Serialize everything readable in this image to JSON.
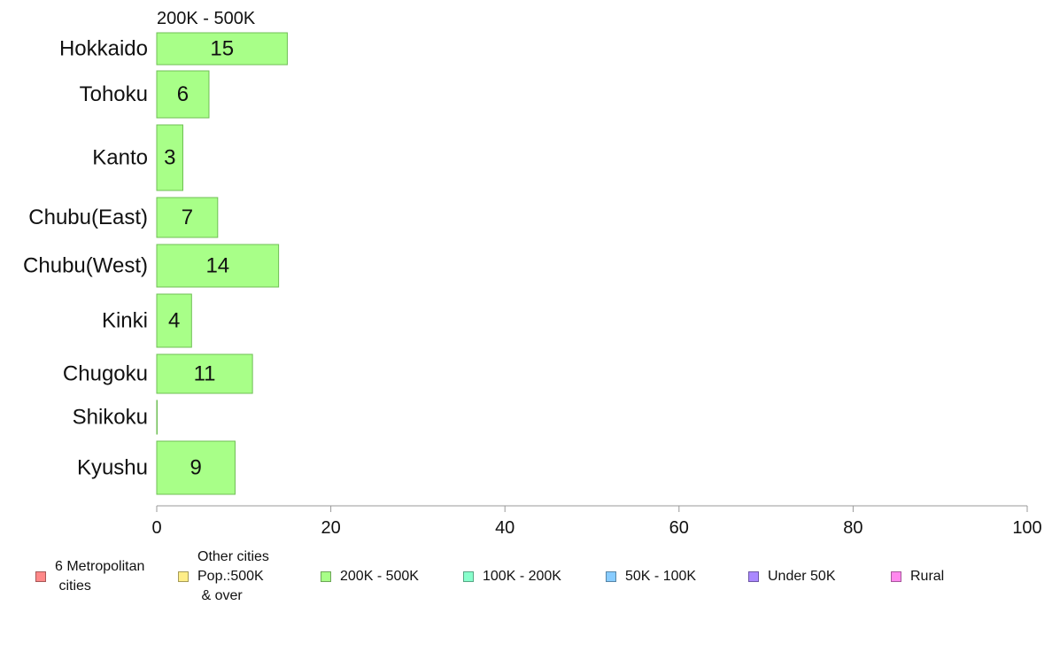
{
  "chart_data": {
    "type": "bar",
    "orientation": "horizontal",
    "title": "200K - 500K",
    "categories": [
      "Hokkaido",
      "Tohoku",
      "Kanto",
      "Chubu(East)",
      "Chubu(West)",
      "Kinki",
      "Chugoku",
      "Shikoku",
      "Kyushu"
    ],
    "values": [
      15,
      6,
      3,
      7,
      14,
      4,
      11,
      0,
      9
    ],
    "labels": [
      "15",
      "6",
      "3",
      "7",
      "14",
      "4",
      "11",
      "",
      "9"
    ],
    "xlim": [
      0,
      100
    ],
    "xticks": [
      "0",
      "20",
      "40",
      "60",
      "80",
      "100"
    ],
    "bar_color": "#a8ff88",
    "bar_border": "#6fbf55",
    "grid": false,
    "legend_position": "bottom"
  },
  "legend": [
    {
      "label": "6 Metropolitan\n cities",
      "color": "#ff8888"
    },
    {
      "label": "Other cities\nPop.:500K\n & over",
      "color": "#ffee88"
    },
    {
      "label": "200K - 500K",
      "color": "#a8ff88"
    },
    {
      "label": "100K - 200K",
      "color": "#88ffcc"
    },
    {
      "label": "50K - 100K",
      "color": "#88ccff"
    },
    {
      "label": "Under 50K",
      "color": "#aa88ff"
    },
    {
      "label": "Rural",
      "color": "#ff88ee"
    }
  ]
}
